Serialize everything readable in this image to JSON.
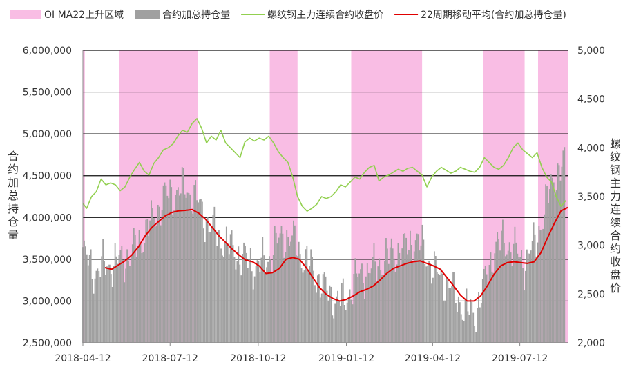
{
  "chart_data": {
    "type": "bar",
    "legend": {
      "position": "top",
      "items": [
        {
          "label": "OI MA22上升区域",
          "kind": "box",
          "color": "#f9bde4"
        },
        {
          "label": "合约加总持仓量",
          "kind": "box",
          "color": "#a0a0a0"
        },
        {
          "label": "螺纹钢主力连续合约收盘价",
          "kind": "line",
          "color": "#92d050"
        },
        {
          "label": "22周期移动平均(合约加总持仓量)",
          "kind": "line",
          "color": "#e00000"
        }
      ]
    },
    "x_axis": {
      "type": "date",
      "range": [
        "2018-04-12",
        "2019-08-31"
      ],
      "ticks": [
        "2018-04-12",
        "2018-07-12",
        "2018-10-12",
        "2019-01-12",
        "2019-04-12",
        "2019-07-12"
      ]
    },
    "y_left": {
      "label": "合约加总持仓量",
      "range": [
        2500000,
        6000000
      ],
      "ticks": [
        2500000,
        3000000,
        3500000,
        4000000,
        4500000,
        5000000,
        5500000,
        6000000
      ],
      "tick_labels": [
        "2,500,000",
        "3,000,000",
        "3,500,000",
        "4,000,000",
        "4,500,000",
        "5,000,000",
        "5,500,000",
        "6,000,000"
      ],
      "gridlines": true
    },
    "y_right": {
      "label": "螺纹钢主力连续合约收盘价",
      "range": [
        2000,
        5000
      ],
      "ticks": [
        2000,
        2500,
        3000,
        3500,
        4000,
        4500,
        5000
      ],
      "tick_labels": [
        "2,000",
        "2,500",
        "3,000",
        "3,500",
        "4,000",
        "4,500",
        "5,000"
      ]
    },
    "shaded_regions": [
      [
        "2018-04-12",
        "2018-04-14"
      ],
      [
        "2018-05-20",
        "2018-08-10"
      ],
      [
        "2018-10-24",
        "2018-11-22"
      ],
      [
        "2019-01-17",
        "2019-04-01"
      ],
      [
        "2019-06-04",
        "2019-07-17"
      ],
      [
        "2019-07-31",
        "2019-08-31"
      ]
    ],
    "series": [
      {
        "name": "合约加总持仓量",
        "type": "bar",
        "axis": "left",
        "color": "#a0a0a0",
        "points": [
          [
            "2018-04-12",
            3580000
          ],
          [
            "2018-04-24",
            3350000
          ],
          [
            "2018-05-04",
            3420000
          ],
          [
            "2018-05-15",
            3460000
          ],
          [
            "2018-05-25",
            3500000
          ],
          [
            "2018-06-05",
            3620000
          ],
          [
            "2018-06-15",
            3800000
          ],
          [
            "2018-06-26",
            4020000
          ],
          [
            "2018-07-06",
            4250000
          ],
          [
            "2018-07-17",
            4300000
          ],
          [
            "2018-07-27",
            4350000
          ],
          [
            "2018-08-07",
            4250000
          ],
          [
            "2018-08-17",
            4000000
          ],
          [
            "2018-08-27",
            3850000
          ],
          [
            "2018-09-07",
            3700000
          ],
          [
            "2018-09-17",
            3600000
          ],
          [
            "2018-09-28",
            3500000
          ],
          [
            "2018-10-08",
            3420000
          ],
          [
            "2018-10-19",
            3450000
          ],
          [
            "2018-10-29",
            3650000
          ],
          [
            "2018-11-08",
            3800000
          ],
          [
            "2018-11-19",
            3700000
          ],
          [
            "2018-11-29",
            3500000
          ],
          [
            "2018-12-10",
            3350000
          ],
          [
            "2018-12-20",
            3150000
          ],
          [
            "2018-12-31",
            3020000
          ],
          [
            "2019-01-10",
            3000000
          ],
          [
            "2019-01-21",
            3250000
          ],
          [
            "2019-01-31",
            3350000
          ],
          [
            "2019-02-10",
            3400000
          ],
          [
            "2019-02-21",
            3500000
          ],
          [
            "2019-03-03",
            3580000
          ],
          [
            "2019-03-14",
            3620000
          ],
          [
            "2019-03-24",
            3750000
          ],
          [
            "2019-04-04",
            3580000
          ],
          [
            "2019-04-14",
            3350000
          ],
          [
            "2019-04-25",
            3250000
          ],
          [
            "2019-05-05",
            3100000
          ],
          [
            "2019-05-15",
            2900000
          ],
          [
            "2019-05-26",
            2850000
          ],
          [
            "2019-06-05",
            3200000
          ],
          [
            "2019-06-16",
            3650000
          ],
          [
            "2019-06-26",
            3720000
          ],
          [
            "2019-07-07",
            3600000
          ],
          [
            "2019-07-17",
            3450000
          ],
          [
            "2019-07-28",
            3700000
          ],
          [
            "2019-08-07",
            4100000
          ],
          [
            "2019-08-17",
            4500000
          ],
          [
            "2019-08-28",
            4650000
          ]
        ]
      },
      {
        "name": "螺纹钢主力连续合约收盘价",
        "type": "line",
        "axis": "right",
        "color": "#92d050",
        "points": [
          [
            "2018-04-12",
            3430
          ],
          [
            "2018-04-16",
            3380
          ],
          [
            "2018-04-21",
            3500
          ],
          [
            "2018-04-26",
            3550
          ],
          [
            "2018-05-01",
            3680
          ],
          [
            "2018-05-06",
            3620
          ],
          [
            "2018-05-11",
            3640
          ],
          [
            "2018-05-16",
            3620
          ],
          [
            "2018-05-21",
            3560
          ],
          [
            "2018-05-26",
            3600
          ],
          [
            "2018-05-31",
            3700
          ],
          [
            "2018-06-05",
            3780
          ],
          [
            "2018-06-10",
            3850
          ],
          [
            "2018-06-15",
            3760
          ],
          [
            "2018-06-20",
            3720
          ],
          [
            "2018-06-25",
            3840
          ],
          [
            "2018-06-30",
            3900
          ],
          [
            "2018-07-05",
            3980
          ],
          [
            "2018-07-10",
            4000
          ],
          [
            "2018-07-15",
            4040
          ],
          [
            "2018-07-20",
            4120
          ],
          [
            "2018-07-25",
            4180
          ],
          [
            "2018-07-30",
            4160
          ],
          [
            "2018-08-04",
            4250
          ],
          [
            "2018-08-09",
            4300
          ],
          [
            "2018-08-14",
            4200
          ],
          [
            "2018-08-19",
            4050
          ],
          [
            "2018-08-24",
            4120
          ],
          [
            "2018-08-29",
            4080
          ],
          [
            "2018-09-03",
            4180
          ],
          [
            "2018-09-08",
            4050
          ],
          [
            "2018-09-13",
            4000
          ],
          [
            "2018-09-18",
            3950
          ],
          [
            "2018-09-23",
            3900
          ],
          [
            "2018-09-28",
            4060
          ],
          [
            "2018-10-03",
            4100
          ],
          [
            "2018-10-08",
            4070
          ],
          [
            "2018-10-13",
            4100
          ],
          [
            "2018-10-18",
            4080
          ],
          [
            "2018-10-23",
            4120
          ],
          [
            "2018-10-28",
            4050
          ],
          [
            "2018-11-02",
            3960
          ],
          [
            "2018-11-07",
            3900
          ],
          [
            "2018-11-12",
            3850
          ],
          [
            "2018-11-17",
            3700
          ],
          [
            "2018-11-22",
            3500
          ],
          [
            "2018-11-27",
            3400
          ],
          [
            "2018-12-02",
            3350
          ],
          [
            "2018-12-07",
            3380
          ],
          [
            "2018-12-12",
            3420
          ],
          [
            "2018-12-17",
            3500
          ],
          [
            "2018-12-22",
            3480
          ],
          [
            "2018-12-27",
            3500
          ],
          [
            "2019-01-01",
            3550
          ],
          [
            "2019-01-06",
            3620
          ],
          [
            "2019-01-11",
            3600
          ],
          [
            "2019-01-16",
            3650
          ],
          [
            "2019-01-21",
            3700
          ],
          [
            "2019-01-26",
            3680
          ],
          [
            "2019-01-31",
            3750
          ],
          [
            "2019-02-05",
            3800
          ],
          [
            "2019-02-10",
            3820
          ],
          [
            "2019-02-15",
            3660
          ],
          [
            "2019-02-20",
            3700
          ],
          [
            "2019-02-25",
            3720
          ],
          [
            "2019-03-02",
            3750
          ],
          [
            "2019-03-07",
            3780
          ],
          [
            "2019-03-12",
            3760
          ],
          [
            "2019-03-17",
            3790
          ],
          [
            "2019-03-22",
            3800
          ],
          [
            "2019-03-27",
            3760
          ],
          [
            "2019-04-01",
            3720
          ],
          [
            "2019-04-06",
            3600
          ],
          [
            "2019-04-11",
            3700
          ],
          [
            "2019-04-16",
            3760
          ],
          [
            "2019-04-21",
            3800
          ],
          [
            "2019-04-26",
            3770
          ],
          [
            "2019-05-01",
            3740
          ],
          [
            "2019-05-06",
            3760
          ],
          [
            "2019-05-11",
            3800
          ],
          [
            "2019-05-16",
            3780
          ],
          [
            "2019-05-21",
            3760
          ],
          [
            "2019-05-26",
            3750
          ],
          [
            "2019-05-31",
            3800
          ],
          [
            "2019-06-05",
            3900
          ],
          [
            "2019-06-10",
            3850
          ],
          [
            "2019-06-15",
            3800
          ],
          [
            "2019-06-20",
            3780
          ],
          [
            "2019-06-25",
            3820
          ],
          [
            "2019-06-30",
            3900
          ],
          [
            "2019-07-05",
            4000
          ],
          [
            "2019-07-10",
            4050
          ],
          [
            "2019-07-15",
            3980
          ],
          [
            "2019-07-20",
            3940
          ],
          [
            "2019-07-25",
            3900
          ],
          [
            "2019-07-30",
            3950
          ],
          [
            "2019-08-04",
            3800
          ],
          [
            "2019-08-09",
            3700
          ],
          [
            "2019-08-14",
            3650
          ],
          [
            "2019-08-19",
            3500
          ],
          [
            "2019-08-24",
            3400
          ],
          [
            "2019-08-29",
            3460
          ]
        ]
      },
      {
        "name": "22周期移动平均(合约加总持仓量)",
        "type": "line",
        "axis": "left",
        "color": "#e00000",
        "points": [
          [
            "2018-05-05",
            3400000
          ],
          [
            "2018-05-12",
            3380000
          ],
          [
            "2018-05-19",
            3430000
          ],
          [
            "2018-05-26",
            3480000
          ],
          [
            "2018-06-02",
            3550000
          ],
          [
            "2018-06-09",
            3650000
          ],
          [
            "2018-06-16",
            3780000
          ],
          [
            "2018-06-23",
            3880000
          ],
          [
            "2018-06-30",
            3950000
          ],
          [
            "2018-07-07",
            4020000
          ],
          [
            "2018-07-14",
            4060000
          ],
          [
            "2018-07-21",
            4080000
          ],
          [
            "2018-07-28",
            4085000
          ],
          [
            "2018-08-04",
            4095000
          ],
          [
            "2018-08-11",
            4050000
          ],
          [
            "2018-08-18",
            3980000
          ],
          [
            "2018-08-25",
            3880000
          ],
          [
            "2018-09-01",
            3780000
          ],
          [
            "2018-09-08",
            3700000
          ],
          [
            "2018-09-15",
            3620000
          ],
          [
            "2018-09-22",
            3550000
          ],
          [
            "2018-09-29",
            3490000
          ],
          [
            "2018-10-06",
            3470000
          ],
          [
            "2018-10-13",
            3420000
          ],
          [
            "2018-10-20",
            3330000
          ],
          [
            "2018-10-27",
            3340000
          ],
          [
            "2018-11-03",
            3390000
          ],
          [
            "2018-11-10",
            3500000
          ],
          [
            "2018-11-17",
            3520000
          ],
          [
            "2018-11-24",
            3500000
          ],
          [
            "2018-12-01",
            3400000
          ],
          [
            "2018-12-08",
            3280000
          ],
          [
            "2018-12-15",
            3160000
          ],
          [
            "2018-12-22",
            3080000
          ],
          [
            "2018-12-29",
            3030000
          ],
          [
            "2019-01-05",
            3000000
          ],
          [
            "2019-01-12",
            3020000
          ],
          [
            "2019-01-19",
            3060000
          ],
          [
            "2019-01-26",
            3110000
          ],
          [
            "2019-02-02",
            3140000
          ],
          [
            "2019-02-09",
            3180000
          ],
          [
            "2019-02-16",
            3250000
          ],
          [
            "2019-02-23",
            3330000
          ],
          [
            "2019-03-02",
            3390000
          ],
          [
            "2019-03-09",
            3420000
          ],
          [
            "2019-03-16",
            3450000
          ],
          [
            "2019-03-23",
            3470000
          ],
          [
            "2019-03-30",
            3480000
          ],
          [
            "2019-04-06",
            3450000
          ],
          [
            "2019-04-13",
            3420000
          ],
          [
            "2019-04-20",
            3380000
          ],
          [
            "2019-04-27",
            3280000
          ],
          [
            "2019-05-04",
            3180000
          ],
          [
            "2019-05-11",
            3070000
          ],
          [
            "2019-05-18",
            3000000
          ],
          [
            "2019-05-25",
            3000000
          ],
          [
            "2019-06-01",
            3060000
          ],
          [
            "2019-06-08",
            3180000
          ],
          [
            "2019-06-15",
            3320000
          ],
          [
            "2019-06-22",
            3420000
          ],
          [
            "2019-06-29",
            3460000
          ],
          [
            "2019-07-06",
            3470000
          ],
          [
            "2019-07-13",
            3460000
          ],
          [
            "2019-07-20",
            3450000
          ],
          [
            "2019-07-27",
            3470000
          ],
          [
            "2019-08-03",
            3580000
          ],
          [
            "2019-08-10",
            3760000
          ],
          [
            "2019-08-17",
            3930000
          ],
          [
            "2019-08-24",
            4080000
          ],
          [
            "2019-08-31",
            4120000
          ]
        ]
      }
    ]
  }
}
